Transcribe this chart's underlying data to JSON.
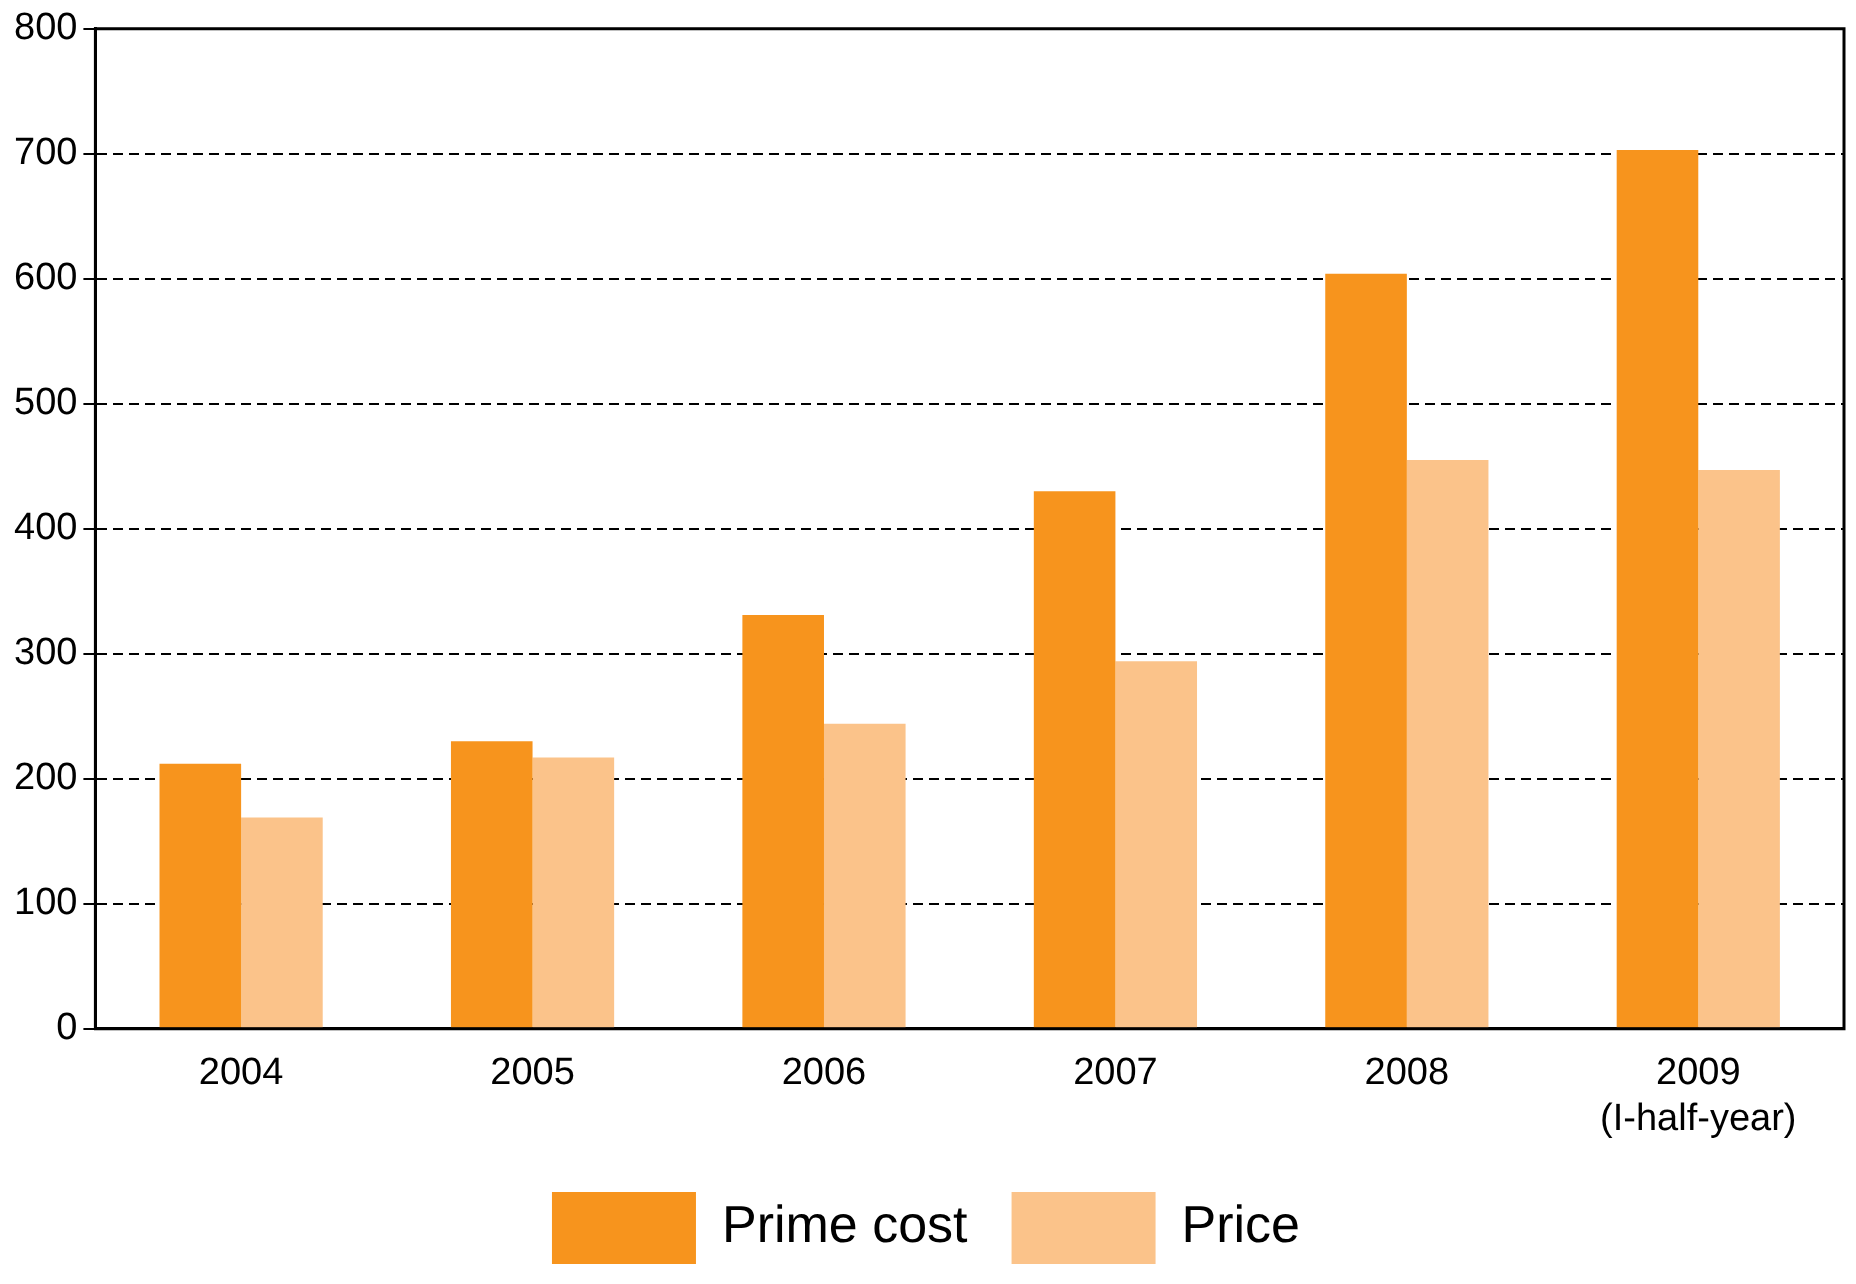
{
  "chart_data": {
    "type": "bar",
    "categories": [
      "2004",
      "2005",
      "2006",
      "2007",
      "2008",
      "2009\n(I-half-year)"
    ],
    "series": [
      {
        "name": "Prime cost",
        "color": "#f7941d",
        "values": [
          212,
          230,
          331,
          430,
          604,
          703
        ]
      },
      {
        "name": "Price",
        "color": "#fbc38a",
        "values": [
          169,
          217,
          244,
          294,
          455,
          447
        ]
      }
    ],
    "ylim": [
      0,
      800
    ],
    "yticks": [
      0,
      100,
      200,
      300,
      400,
      500,
      600,
      700,
      800
    ],
    "grid": "y",
    "legend": "bottom"
  }
}
